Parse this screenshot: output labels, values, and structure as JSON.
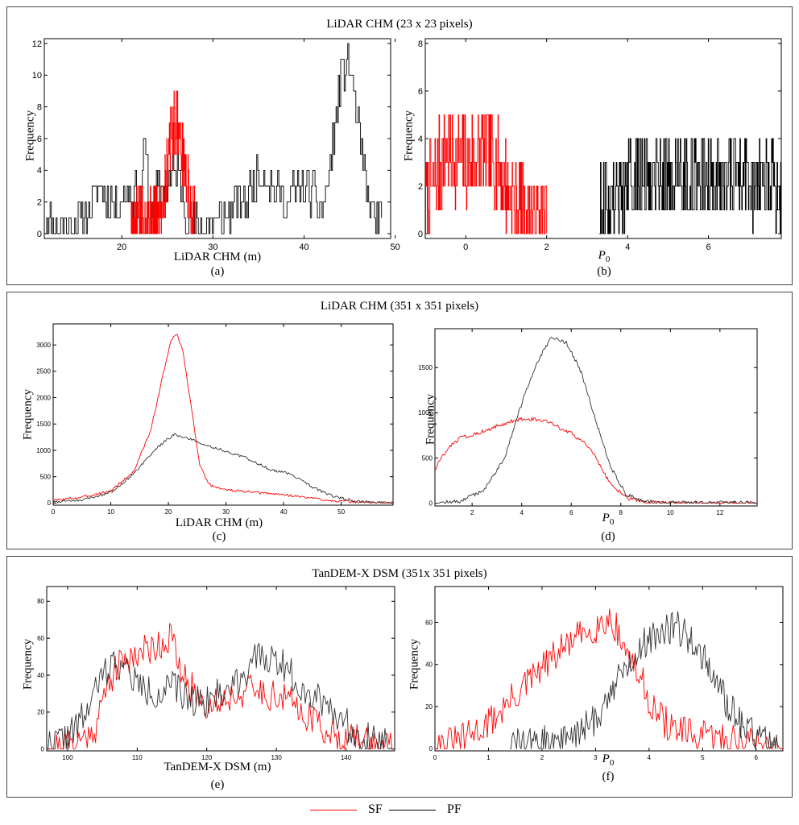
{
  "panels": [
    {
      "title": "LiDAR CHM (23 x 23 pixels)"
    },
    {
      "title": "LiDAR CHM (351 x 351 pixels)"
    },
    {
      "title": "TanDEM-X DSM (351x 351 pixels)"
    }
  ],
  "legend": [
    {
      "name": "SF",
      "color": "#ff0000"
    },
    {
      "name": "PF",
      "color": "#000000"
    }
  ],
  "chart_data": [
    {
      "id": "a",
      "type": "line",
      "label": "(a)",
      "xlabel": "LiDAR CHM (m)",
      "ylabel": "Frequency",
      "xlim": [
        11.5,
        49.5
      ],
      "ylim": [
        -0.3,
        12.3
      ],
      "xticks": [
        20,
        30,
        40,
        50
      ],
      "yticks": [
        0,
        2,
        4,
        6,
        8,
        10,
        12
      ],
      "series": [
        {
          "name": "PF",
          "color": "#000000",
          "gen": "noisyline",
          "seed": 11,
          "n": 290,
          "noise": 1.3,
          "step": true,
          "pts": [
            [
              11.5,
              1
            ],
            [
              14,
              0.5
            ],
            [
              16,
              1
            ],
            [
              17.5,
              3
            ],
            [
              19,
              2
            ],
            [
              21,
              2.5
            ],
            [
              22,
              2
            ],
            [
              22.5,
              6
            ],
            [
              23,
              2
            ],
            [
              25,
              3
            ],
            [
              26,
              4.5
            ],
            [
              27,
              1.5
            ],
            [
              28,
              0.5
            ],
            [
              30,
              0.5
            ],
            [
              32,
              1.5
            ],
            [
              34,
              2.5
            ],
            [
              35.5,
              4
            ],
            [
              36.5,
              3
            ],
            [
              38,
              2
            ],
            [
              39.5,
              3
            ],
            [
              41,
              2.5
            ],
            [
              42,
              1.5
            ],
            [
              43,
              5
            ],
            [
              44,
              10
            ],
            [
              45,
              11
            ],
            [
              46,
              6
            ],
            [
              47,
              2
            ],
            [
              48,
              0.8
            ],
            [
              48.5,
              1
            ]
          ]
        },
        {
          "name": "SF",
          "color": "#ff0000",
          "gen": "noisyline",
          "seed": 5,
          "n": 220,
          "noise": 2.2,
          "step": true,
          "pts": [
            [
              21,
              0.5
            ],
            [
              22,
              1
            ],
            [
              23,
              1
            ],
            [
              24,
              1
            ],
            [
              24.8,
              3
            ],
            [
              25.3,
              6
            ],
            [
              26,
              7
            ],
            [
              26.7,
              5
            ],
            [
              27.3,
              2.5
            ],
            [
              28,
              0.5
            ]
          ]
        }
      ]
    },
    {
      "id": "b",
      "type": "line",
      "label": "(b)",
      "xlabel": "P",
      "xlabel_sub": "0",
      "ylabel": "Frequency",
      "xlim": [
        -1.0,
        7.8
      ],
      "ylim": [
        -0.2,
        8.2
      ],
      "xticks": [
        0,
        2,
        4,
        6
      ],
      "yticks": [
        0,
        2,
        4,
        6,
        8
      ],
      "series": [
        {
          "name": "SF",
          "color": "#ff0000",
          "gen": "noisyline",
          "seed": 7,
          "n": 240,
          "noise": 2.0,
          "step": true,
          "pts": [
            [
              -1.0,
              1
            ],
            [
              -0.8,
              2
            ],
            [
              -0.5,
              3.5
            ],
            [
              0,
              3
            ],
            [
              0.5,
              3.5
            ],
            [
              0.8,
              3
            ],
            [
              1.1,
              1.5
            ],
            [
              1.5,
              0.6
            ],
            [
              2.0,
              0.5
            ]
          ]
        },
        {
          "name": "PF",
          "color": "#000000",
          "gen": "noisyline",
          "seed": 9,
          "n": 300,
          "noise": 1.9,
          "step": true,
          "pts": [
            [
              3.3,
              1
            ],
            [
              3.8,
              1.8
            ],
            [
              4.5,
              2.6
            ],
            [
              5.2,
              2.4
            ],
            [
              6,
              2.5
            ],
            [
              7,
              2.3
            ],
            [
              7.8,
              2
            ]
          ]
        }
      ]
    },
    {
      "id": "c",
      "type": "line",
      "label": "(c)",
      "xlabel": "LiDAR CHM (m)",
      "ylabel": "Frequency",
      "xlim": [
        0,
        59
      ],
      "ylim": [
        -40,
        3400
      ],
      "xticks": [
        0,
        10,
        20,
        30,
        40,
        50
      ],
      "yticks": [
        0,
        500,
        1000,
        1500,
        2000,
        2500,
        3000
      ],
      "series": [
        {
          "name": "SF",
          "color": "#ff0000",
          "gen": "noisyline",
          "seed": 3,
          "n": 300,
          "noise": 25,
          "step": false,
          "pts": [
            [
              0,
              50
            ],
            [
              5,
              110
            ],
            [
              10,
              230
            ],
            [
              14,
              600
            ],
            [
              17,
              1400
            ],
            [
              19,
              2400
            ],
            [
              20.5,
              3100
            ],
            [
              21.5,
              3200
            ],
            [
              22.5,
              2900
            ],
            [
              24,
              1800
            ],
            [
              25.5,
              700
            ],
            [
              27,
              350
            ],
            [
              30,
              250
            ],
            [
              35,
              200
            ],
            [
              40,
              160
            ],
            [
              45,
              90
            ],
            [
              50,
              30
            ],
            [
              55,
              10
            ],
            [
              59,
              5
            ]
          ]
        },
        {
          "name": "PF",
          "color": "#333333",
          "gen": "noisyline",
          "seed": 4,
          "n": 300,
          "noise": 25,
          "step": false,
          "pts": [
            [
              0,
              20
            ],
            [
              5,
              60
            ],
            [
              10,
              200
            ],
            [
              14,
              550
            ],
            [
              18,
              1050
            ],
            [
              21,
              1300
            ],
            [
              24,
              1200
            ],
            [
              28,
              1050
            ],
            [
              33,
              880
            ],
            [
              38,
              620
            ],
            [
              41,
              560
            ],
            [
              45,
              300
            ],
            [
              48,
              150
            ],
            [
              52,
              40
            ],
            [
              55,
              10
            ],
            [
              59,
              5
            ]
          ]
        }
      ]
    },
    {
      "id": "d",
      "type": "line",
      "label": "(d)",
      "xlabel": "P",
      "xlabel_sub": "0",
      "ylabel": "Frequency",
      "xlim": [
        0.5,
        13.5
      ],
      "ylim": [
        -30,
        1930
      ],
      "xticks": [
        2,
        4,
        6,
        8,
        10,
        12
      ],
      "yticks": [
        0,
        500,
        1000,
        1500
      ],
      "series": [
        {
          "name": "SF",
          "color": "#ff0000",
          "gen": "noisyline",
          "seed": 8,
          "n": 300,
          "noise": 22,
          "step": false,
          "pts": [
            [
              0.5,
              380
            ],
            [
              1,
              600
            ],
            [
              1.5,
              720
            ],
            [
              2.5,
              800
            ],
            [
              3.5,
              900
            ],
            [
              4.2,
              940
            ],
            [
              5,
              900
            ],
            [
              6,
              780
            ],
            [
              6.8,
              600
            ],
            [
              7.5,
              250
            ],
            [
              8.2,
              60
            ],
            [
              9,
              10
            ],
            [
              10,
              0
            ],
            [
              13.5,
              0
            ]
          ]
        },
        {
          "name": "PF",
          "color": "#333333",
          "gen": "noisyline",
          "seed": 12,
          "n": 300,
          "noise": 22,
          "step": false,
          "pts": [
            [
              0.5,
              5
            ],
            [
              1.5,
              20
            ],
            [
              2.5,
              150
            ],
            [
              3.3,
              500
            ],
            [
              4,
              1100
            ],
            [
              4.6,
              1550
            ],
            [
              5.2,
              1830
            ],
            [
              5.8,
              1780
            ],
            [
              6.4,
              1450
            ],
            [
              7,
              900
            ],
            [
              7.6,
              400
            ],
            [
              8.2,
              100
            ],
            [
              9,
              15
            ],
            [
              10,
              5
            ],
            [
              13.5,
              3
            ]
          ]
        }
      ]
    },
    {
      "id": "e",
      "type": "line",
      "label": "(e)",
      "xlabel": "TanDEM-X DSM (m)",
      "ylabel": "Frequency",
      "xlim": [
        97,
        147
      ],
      "ylim": [
        -1,
        88
      ],
      "xticks": [
        100,
        110,
        120,
        130,
        140
      ],
      "yticks": [
        0,
        20,
        40,
        60,
        80
      ],
      "series": [
        {
          "name": "SF",
          "color": "#ff0000",
          "gen": "noisyline",
          "seed": 21,
          "n": 250,
          "noise": 9,
          "step": false,
          "pts": [
            [
              97,
              0
            ],
            [
              100,
              2
            ],
            [
              102,
              5
            ],
            [
              104,
              12
            ],
            [
              106,
              38
            ],
            [
              108,
              48
            ],
            [
              110,
              52
            ],
            [
              112,
              55
            ],
            [
              114,
              58
            ],
            [
              115,
              62
            ],
            [
              116,
              42
            ],
            [
              118,
              32
            ],
            [
              120,
              24
            ],
            [
              123,
              28
            ],
            [
              126,
              32
            ],
            [
              129,
              30
            ],
            [
              132,
              26
            ],
            [
              134,
              20
            ],
            [
              136,
              14
            ],
            [
              138,
              8
            ],
            [
              141,
              5
            ],
            [
              144,
              2
            ],
            [
              147,
              1
            ]
          ]
        },
        {
          "name": "PF",
          "color": "#333333",
          "gen": "noisyline",
          "seed": 22,
          "n": 250,
          "noise": 9,
          "step": false,
          "pts": [
            [
              97,
              2
            ],
            [
              99,
              5
            ],
            [
              101,
              10
            ],
            [
              103,
              22
            ],
            [
              105,
              40
            ],
            [
              107,
              48
            ],
            [
              109,
              40
            ],
            [
              111,
              32
            ],
            [
              113,
              30
            ],
            [
              115,
              34
            ],
            [
              117,
              28
            ],
            [
              119,
              26
            ],
            [
              121,
              28
            ],
            [
              123,
              32
            ],
            [
              125,
              40
            ],
            [
              127,
              48
            ],
            [
              129,
              50
            ],
            [
              131,
              46
            ],
            [
              133,
              36
            ],
            [
              135,
              30
            ],
            [
              137,
              26
            ],
            [
              139,
              18
            ],
            [
              141,
              10
            ],
            [
              143,
              6
            ],
            [
              145,
              4
            ],
            [
              147,
              2
            ]
          ]
        }
      ]
    },
    {
      "id": "f",
      "type": "line",
      "label": "(f)",
      "xlabel": "P",
      "xlabel_sub": "0",
      "ylabel": "Frequency",
      "xlim": [
        0,
        6.5
      ],
      "ylim": [
        -1,
        77
      ],
      "xticks": [
        0,
        1,
        2,
        3,
        4,
        5,
        6
      ],
      "yticks": [
        0,
        20,
        40,
        60
      ],
      "series": [
        {
          "name": "SF",
          "color": "#ff0000",
          "gen": "noisyline",
          "seed": 31,
          "n": 260,
          "noise": 8,
          "step": false,
          "pts": [
            [
              0,
              1
            ],
            [
              0.5,
              4
            ],
            [
              1,
              12
            ],
            [
              1.5,
              25
            ],
            [
              2,
              38
            ],
            [
              2.5,
              50
            ],
            [
              3,
              58
            ],
            [
              3.3,
              62
            ],
            [
              3.5,
              50
            ],
            [
              3.7,
              40
            ],
            [
              3.9,
              30
            ],
            [
              4.1,
              18
            ],
            [
              4.4,
              10
            ],
            [
              4.8,
              6
            ],
            [
              5.3,
              5
            ],
            [
              5.8,
              4
            ],
            [
              6.2,
              2
            ],
            [
              6.5,
              1
            ]
          ]
        },
        {
          "name": "PF",
          "color": "#333333",
          "gen": "noisyline",
          "seed": 32,
          "n": 240,
          "noise": 8,
          "step": false,
          "pts": [
            [
              1.4,
              2
            ],
            [
              2,
              3
            ],
            [
              2.6,
              6
            ],
            [
              3,
              14
            ],
            [
              3.3,
              28
            ],
            [
              3.6,
              40
            ],
            [
              3.9,
              50
            ],
            [
              4.2,
              56
            ],
            [
              4.5,
              58
            ],
            [
              4.8,
              52
            ],
            [
              5.1,
              40
            ],
            [
              5.3,
              28
            ],
            [
              5.6,
              16
            ],
            [
              5.9,
              8
            ],
            [
              6.2,
              4
            ],
            [
              6.4,
              2
            ]
          ]
        }
      ]
    }
  ]
}
